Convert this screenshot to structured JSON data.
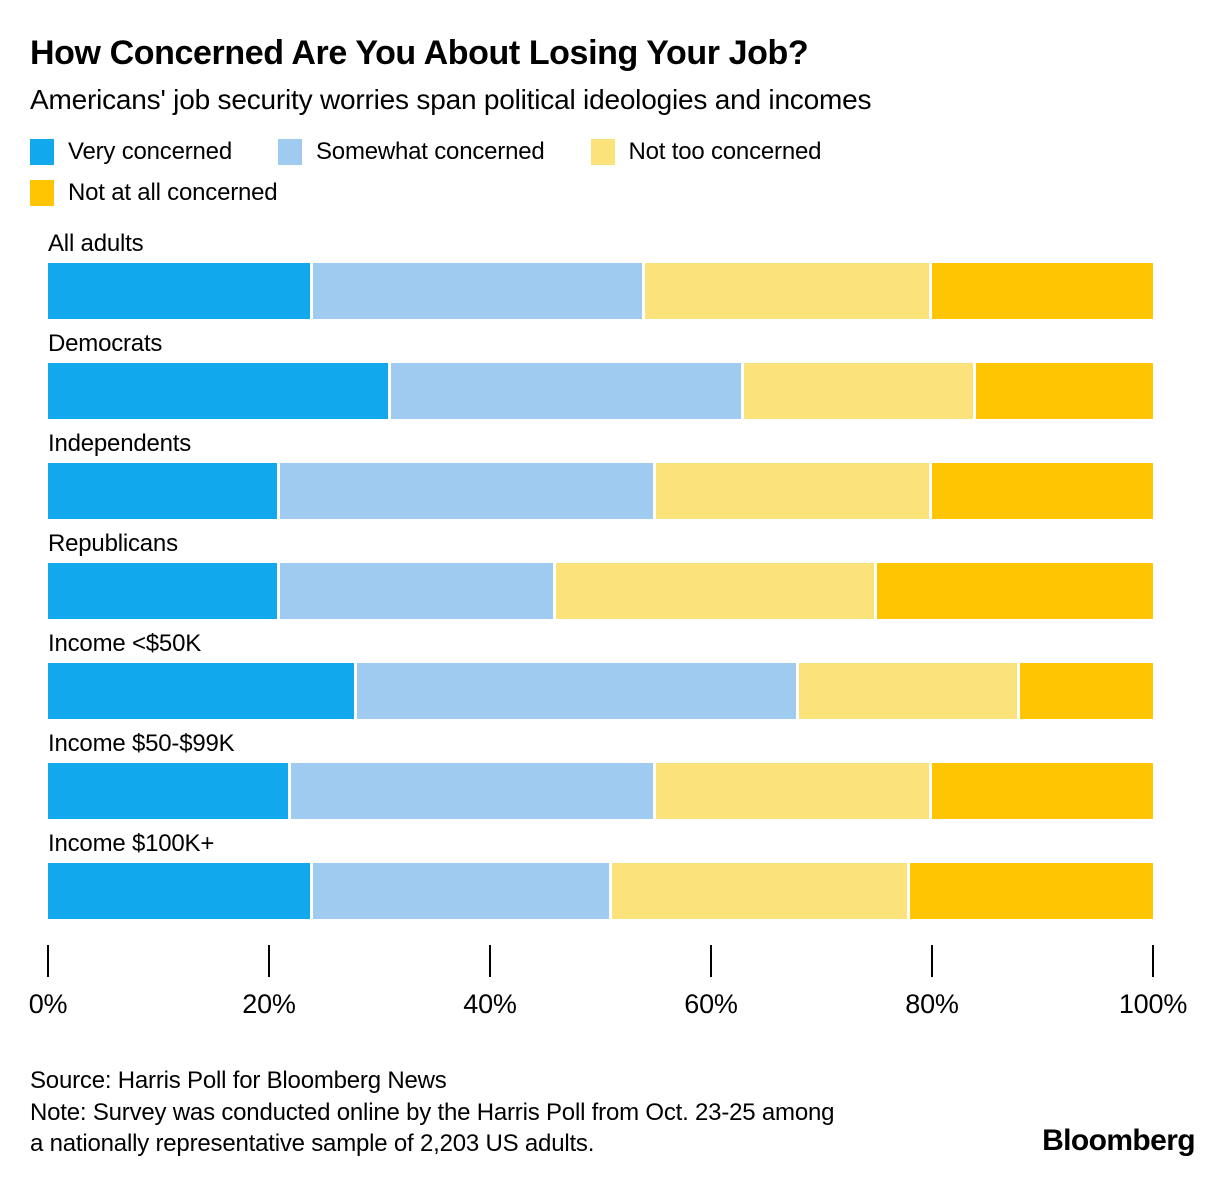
{
  "header": {
    "title": "How Concerned Are You About Losing Your Job?",
    "subtitle": "Americans' job security worries span political ideologies and incomes"
  },
  "colors": {
    "very_concerned": "#11A8EE",
    "somewhat_concerned": "#A0CBF0",
    "not_too_concerned": "#FBE27B",
    "not_at_all_concerned": "#FFC402",
    "text": "#000000",
    "background": "#FFFFFF"
  },
  "chart_data": {
    "type": "bar",
    "orientation": "horizontal-stacked",
    "stacking": "percent",
    "categories": [
      "All adults",
      "Democrats",
      "Independents",
      "Republicans",
      "Income <$50K",
      "Income $50-$99K",
      "Income $100K+"
    ],
    "series": [
      {
        "name": "Very concerned",
        "color": "#11A8EE",
        "values": [
          24,
          31,
          21,
          21,
          28,
          22,
          24
        ]
      },
      {
        "name": "Somewhat concerned",
        "color": "#A0CBF0",
        "values": [
          30,
          32,
          34,
          25,
          40,
          33,
          27
        ]
      },
      {
        "name": "Not too concerned",
        "color": "#FBE27B",
        "values": [
          26,
          21,
          25,
          29,
          20,
          25,
          27
        ]
      },
      {
        "name": "Not at all concerned",
        "color": "#FFC402",
        "values": [
          20,
          16,
          20,
          25,
          12,
          20,
          22
        ]
      }
    ],
    "title": "How Concerned Are You About Losing Your Job?",
    "xlabel": "",
    "ylabel": "",
    "xlim": [
      0,
      100
    ],
    "x_ticks": [
      {
        "label": "0%",
        "value": 0
      },
      {
        "label": "20%",
        "value": 20
      },
      {
        "label": "40%",
        "value": 40
      },
      {
        "label": "60%",
        "value": 60
      },
      {
        "label": "80%",
        "value": 80
      },
      {
        "label": "100%",
        "value": 100
      }
    ],
    "grid": false,
    "legend_position": "top"
  },
  "footer": {
    "source": "Source: Harris Poll for Bloomberg News",
    "note_line1": "Note: Survey was conducted online by the Harris Poll from Oct. 23-25 among",
    "note_line2": "a nationally representative sample of 2,203 US adults.",
    "brand": "Bloomberg"
  }
}
